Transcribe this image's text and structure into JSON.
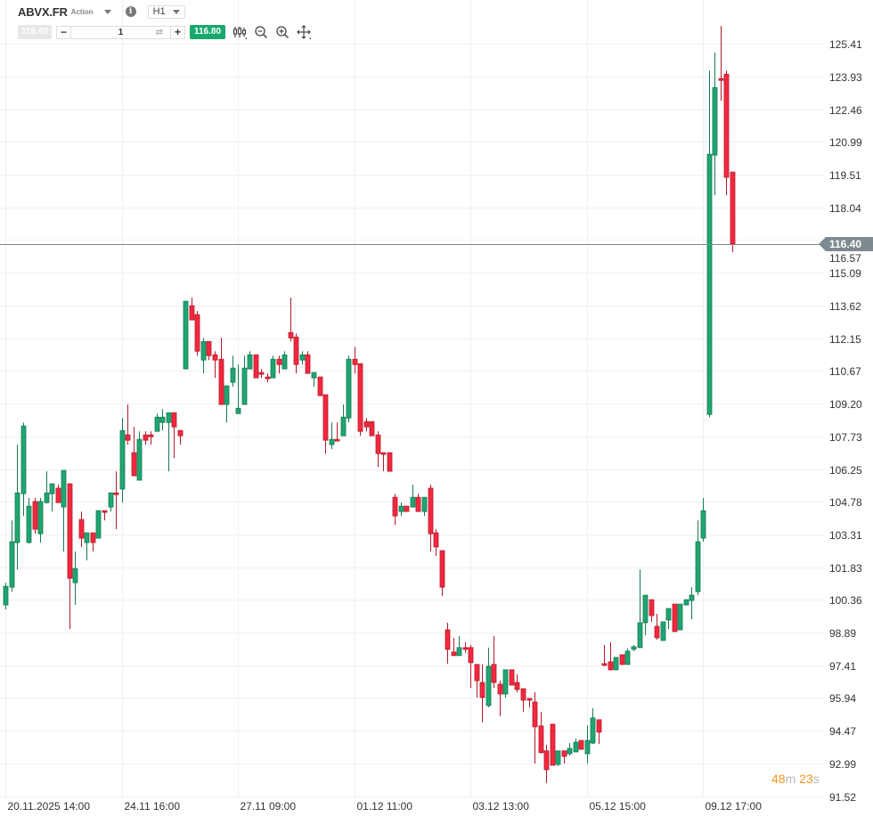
{
  "header": {
    "symbol": "ABVX.FR",
    "instrument_type": "Action",
    "timeframe": "H1"
  },
  "trade_bar": {
    "sell_price": "116.40",
    "quantity": "1",
    "minus_label": "−",
    "plus_label": "+",
    "buy_price": "116.80"
  },
  "toolbar_icons": [
    "indicators-icon",
    "zoom-out-icon",
    "zoom-in-icon",
    "pan-move-icon"
  ],
  "current_price": "116.40",
  "countdown": {
    "minutes": "48",
    "m_unit": "m",
    "seconds": "23",
    "s_unit": "s"
  },
  "colors": {
    "up": "#1fa571",
    "up_border": "#167a52",
    "down": "#f4283e",
    "down_border": "#b41a2b",
    "price_line": "#7d8b8f",
    "buy": "#17a86b",
    "countdown": "#f7941d"
  },
  "chart_data": {
    "type": "candlestick",
    "ylim": [
      90.58,
      127.38
    ],
    "y_ticks": [
      "125.41",
      "123.93",
      "122.46",
      "120.99",
      "119.51",
      "118.04",
      "116.57",
      "115.09",
      "113.62",
      "112.15",
      "110.67",
      "109.20",
      "107.73",
      "106.25",
      "104.78",
      "103.31",
      "101.83",
      "100.36",
      "98.89",
      "97.41",
      "95.94",
      "94.47",
      "92.99",
      "91.52"
    ],
    "x_ticks": [
      {
        "index": 0,
        "label": "20.11.2025 14:00"
      },
      {
        "index": 20,
        "label": "24.11 16:00"
      },
      {
        "index": 40,
        "label": "27.11 09:00"
      },
      {
        "index": 60,
        "label": "01.12 11:00"
      },
      {
        "index": 80,
        "label": "03.12 13:00"
      },
      {
        "index": 100,
        "label": "05.12 15:00"
      },
      {
        "index": 120,
        "label": "09.12 17:00"
      }
    ],
    "grid": true,
    "ohlc": [
      [
        100.13,
        101.13,
        99.93,
        100.97
      ],
      [
        100.93,
        103.94,
        100.73,
        102.98
      ],
      [
        102.94,
        107.35,
        101.73,
        105.18
      ],
      [
        105.14,
        108.35,
        104.14,
        108.19
      ],
      [
        102.94,
        104.95,
        102.9,
        104.58
      ],
      [
        104.79,
        104.95,
        103.34,
        103.54
      ],
      [
        103.34,
        104.95,
        102.94,
        104.79
      ],
      [
        104.74,
        106.15,
        104.7,
        105.18
      ],
      [
        105.14,
        105.59,
        104.34,
        105.59
      ],
      [
        105.39,
        105.55,
        104.74,
        104.74
      ],
      [
        104.54,
        106.19,
        102.54,
        106.19
      ],
      [
        105.59,
        105.59,
        99.05,
        101.33
      ],
      [
        101.13,
        102.54,
        100.13,
        101.77
      ],
      [
        103.98,
        104.34,
        102.74,
        103.14
      ],
      [
        102.94,
        103.38,
        102.14,
        103.38
      ],
      [
        103.38,
        103.38,
        102.54,
        102.94
      ],
      [
        103.14,
        104.38,
        103.14,
        104.38
      ],
      [
        104.38,
        104.38,
        103.94,
        104.3
      ],
      [
        104.54,
        105.18,
        104.34,
        105.18
      ],
      [
        105.18,
        106.15,
        103.54,
        105.1
      ],
      [
        105.35,
        108.55,
        104.74,
        107.99
      ],
      [
        107.79,
        109.16,
        107.35,
        107.55
      ],
      [
        106.99,
        108.15,
        105.95,
        105.95
      ],
      [
        105.75,
        107.95,
        105.75,
        107.59
      ],
      [
        107.79,
        107.95,
        107.35,
        107.55
      ],
      [
        107.79,
        107.95,
        107.35,
        107.71
      ],
      [
        107.95,
        108.75,
        107.95,
        108.59
      ],
      [
        108.35,
        108.95,
        107.99,
        108.59
      ],
      [
        108.35,
        108.79,
        106.15,
        108.79
      ],
      [
        108.79,
        108.79,
        106.75,
        108.15
      ],
      [
        107.99,
        107.99,
        107.35,
        107.75
      ],
      [
        110.76,
        113.81,
        110.76,
        113.81
      ],
      [
        113.61,
        113.97,
        112.97,
        112.97
      ],
      [
        113.21,
        113.37,
        111.36,
        111.56
      ],
      [
        111.16,
        112.16,
        110.56,
        112.0
      ],
      [
        112.0,
        112.0,
        111.16,
        111.36
      ],
      [
        111.4,
        111.56,
        110.36,
        111.16
      ],
      [
        111.2,
        112.16,
        109.16,
        109.16
      ],
      [
        109.16,
        110.0,
        108.35,
        110.0
      ],
      [
        110.16,
        111.36,
        109.96,
        110.8
      ],
      [
        108.75,
        110.96,
        108.75,
        108.99
      ],
      [
        109.16,
        111.36,
        109.16,
        110.8
      ],
      [
        110.76,
        111.56,
        110.76,
        111.4
      ],
      [
        111.4,
        111.4,
        110.36,
        110.36
      ],
      [
        110.6,
        110.76,
        110.36,
        110.52
      ],
      [
        110.4,
        110.56,
        110.16,
        110.32
      ],
      [
        110.36,
        111.36,
        110.36,
        111.2
      ],
      [
        111.2,
        111.36,
        110.56,
        110.96
      ],
      [
        110.76,
        111.56,
        110.76,
        111.4
      ],
      [
        112.4,
        113.97,
        112.0,
        112.16
      ],
      [
        112.2,
        112.36,
        110.56,
        110.96
      ],
      [
        111.16,
        111.56,
        110.96,
        111.4
      ],
      [
        111.4,
        111.56,
        110.56,
        110.56
      ],
      [
        110.36,
        110.6,
        109.96,
        110.6
      ],
      [
        110.4,
        110.4,
        109.56,
        109.56
      ],
      [
        109.6,
        109.6,
        106.95,
        107.55
      ],
      [
        107.35,
        108.35,
        107.15,
        107.59
      ],
      [
        107.59,
        108.35,
        107.51,
        107.51
      ],
      [
        107.75,
        109.16,
        107.75,
        108.59
      ],
      [
        108.55,
        111.36,
        108.35,
        111.2
      ],
      [
        111.2,
        111.76,
        110.56,
        110.96
      ],
      [
        111.0,
        111.0,
        107.75,
        107.95
      ],
      [
        108.39,
        108.55,
        107.95,
        108.15
      ],
      [
        108.39,
        108.39,
        107.75,
        107.75
      ],
      [
        107.79,
        107.95,
        106.35,
        106.95
      ],
      [
        106.99,
        106.99,
        106.15,
        106.91
      ],
      [
        106.99,
        106.99,
        106.15,
        106.15
      ],
      [
        104.98,
        105.14,
        103.74,
        104.14
      ],
      [
        104.34,
        104.74,
        104.14,
        104.58
      ],
      [
        104.58,
        104.58,
        104.34,
        104.34
      ],
      [
        104.54,
        105.55,
        104.54,
        104.98
      ],
      [
        104.98,
        105.14,
        104.34,
        104.34
      ],
      [
        104.34,
        104.98,
        104.14,
        104.98
      ],
      [
        105.39,
        105.55,
        102.54,
        103.34
      ],
      [
        103.38,
        103.54,
        102.34,
        102.74
      ],
      [
        102.58,
        102.58,
        100.53,
        100.93
      ],
      [
        99.01,
        99.33,
        97.49,
        98.13
      ],
      [
        98.01,
        98.65,
        97.85,
        97.85
      ],
      [
        97.85,
        98.73,
        97.85,
        98.21
      ],
      [
        98.21,
        98.45,
        97.97,
        98.13
      ],
      [
        98.21,
        98.33,
        96.39,
        97.53
      ],
      [
        97.45,
        97.45,
        95.96,
        96.72
      ],
      [
        96.64,
        97.45,
        94.84,
        95.96
      ],
      [
        95.6,
        98.21,
        95.52,
        97.37
      ],
      [
        97.45,
        98.73,
        96.39,
        96.64
      ],
      [
        96.56,
        96.72,
        95.12,
        96.12
      ],
      [
        96.12,
        97.21,
        95.96,
        97.21
      ],
      [
        97.21,
        97.21,
        96.52,
        96.52
      ],
      [
        96.64,
        97.01,
        96.2,
        96.32
      ],
      [
        96.36,
        96.36,
        95.32,
        95.84
      ],
      [
        95.92,
        95.92,
        95.52,
        95.84
      ],
      [
        95.76,
        96.2,
        92.99,
        94.64
      ],
      [
        94.68,
        95.32,
        93.44,
        93.48
      ],
      [
        93.56,
        93.83,
        92.11,
        92.71
      ],
      [
        94.76,
        94.76,
        92.91,
        92.91
      ],
      [
        92.95,
        93.56,
        92.87,
        93.56
      ],
      [
        93.56,
        93.56,
        92.99,
        93.31
      ],
      [
        93.43,
        93.91,
        93.35,
        93.67
      ],
      [
        93.51,
        94.11,
        93.51,
        93.95
      ],
      [
        94.03,
        94.03,
        93.63,
        93.63
      ],
      [
        93.43,
        94.72,
        92.99,
        94.03
      ],
      [
        93.91,
        95.48,
        93.87,
        95.04
      ],
      [
        94.96,
        94.96,
        93.87,
        94.4
      ],
      [
        97.49,
        98.33,
        97.37,
        97.41
      ],
      [
        97.57,
        98.45,
        97.17,
        97.21
      ],
      [
        97.21,
        97.77,
        97.21,
        97.77
      ],
      [
        97.89,
        97.89,
        97.45,
        97.45
      ],
      [
        97.45,
        98.17,
        97.45,
        98.05
      ],
      [
        98.13,
        98.33,
        98.05,
        98.25
      ],
      [
        98.21,
        101.73,
        98.21,
        99.33
      ],
      [
        99.33,
        100.57,
        98.77,
        100.57
      ],
      [
        100.37,
        100.37,
        99.37,
        99.65
      ],
      [
        99.17,
        99.73,
        98.57,
        98.65
      ],
      [
        98.53,
        99.37,
        98.53,
        99.37
      ],
      [
        99.45,
        99.97,
        99.05,
        99.97
      ],
      [
        100.17,
        100.17,
        98.93,
        98.93
      ],
      [
        99.01,
        100.17,
        99.01,
        100.17
      ],
      [
        100.13,
        100.37,
        100.13,
        100.37
      ],
      [
        100.33,
        100.93,
        99.49,
        100.57
      ],
      [
        100.73,
        103.94,
        100.57,
        102.98
      ],
      [
        103.14,
        104.95,
        102.98,
        104.38
      ],
      [
        108.71,
        124.2,
        108.59,
        120.43
      ],
      [
        120.39,
        125.01,
        118.59,
        123.44
      ],
      [
        123.84,
        126.21,
        122.84,
        123.76
      ],
      [
        124.04,
        124.2,
        118.59,
        119.39
      ],
      [
        119.63,
        119.63,
        116.02,
        116.4
      ]
    ]
  }
}
